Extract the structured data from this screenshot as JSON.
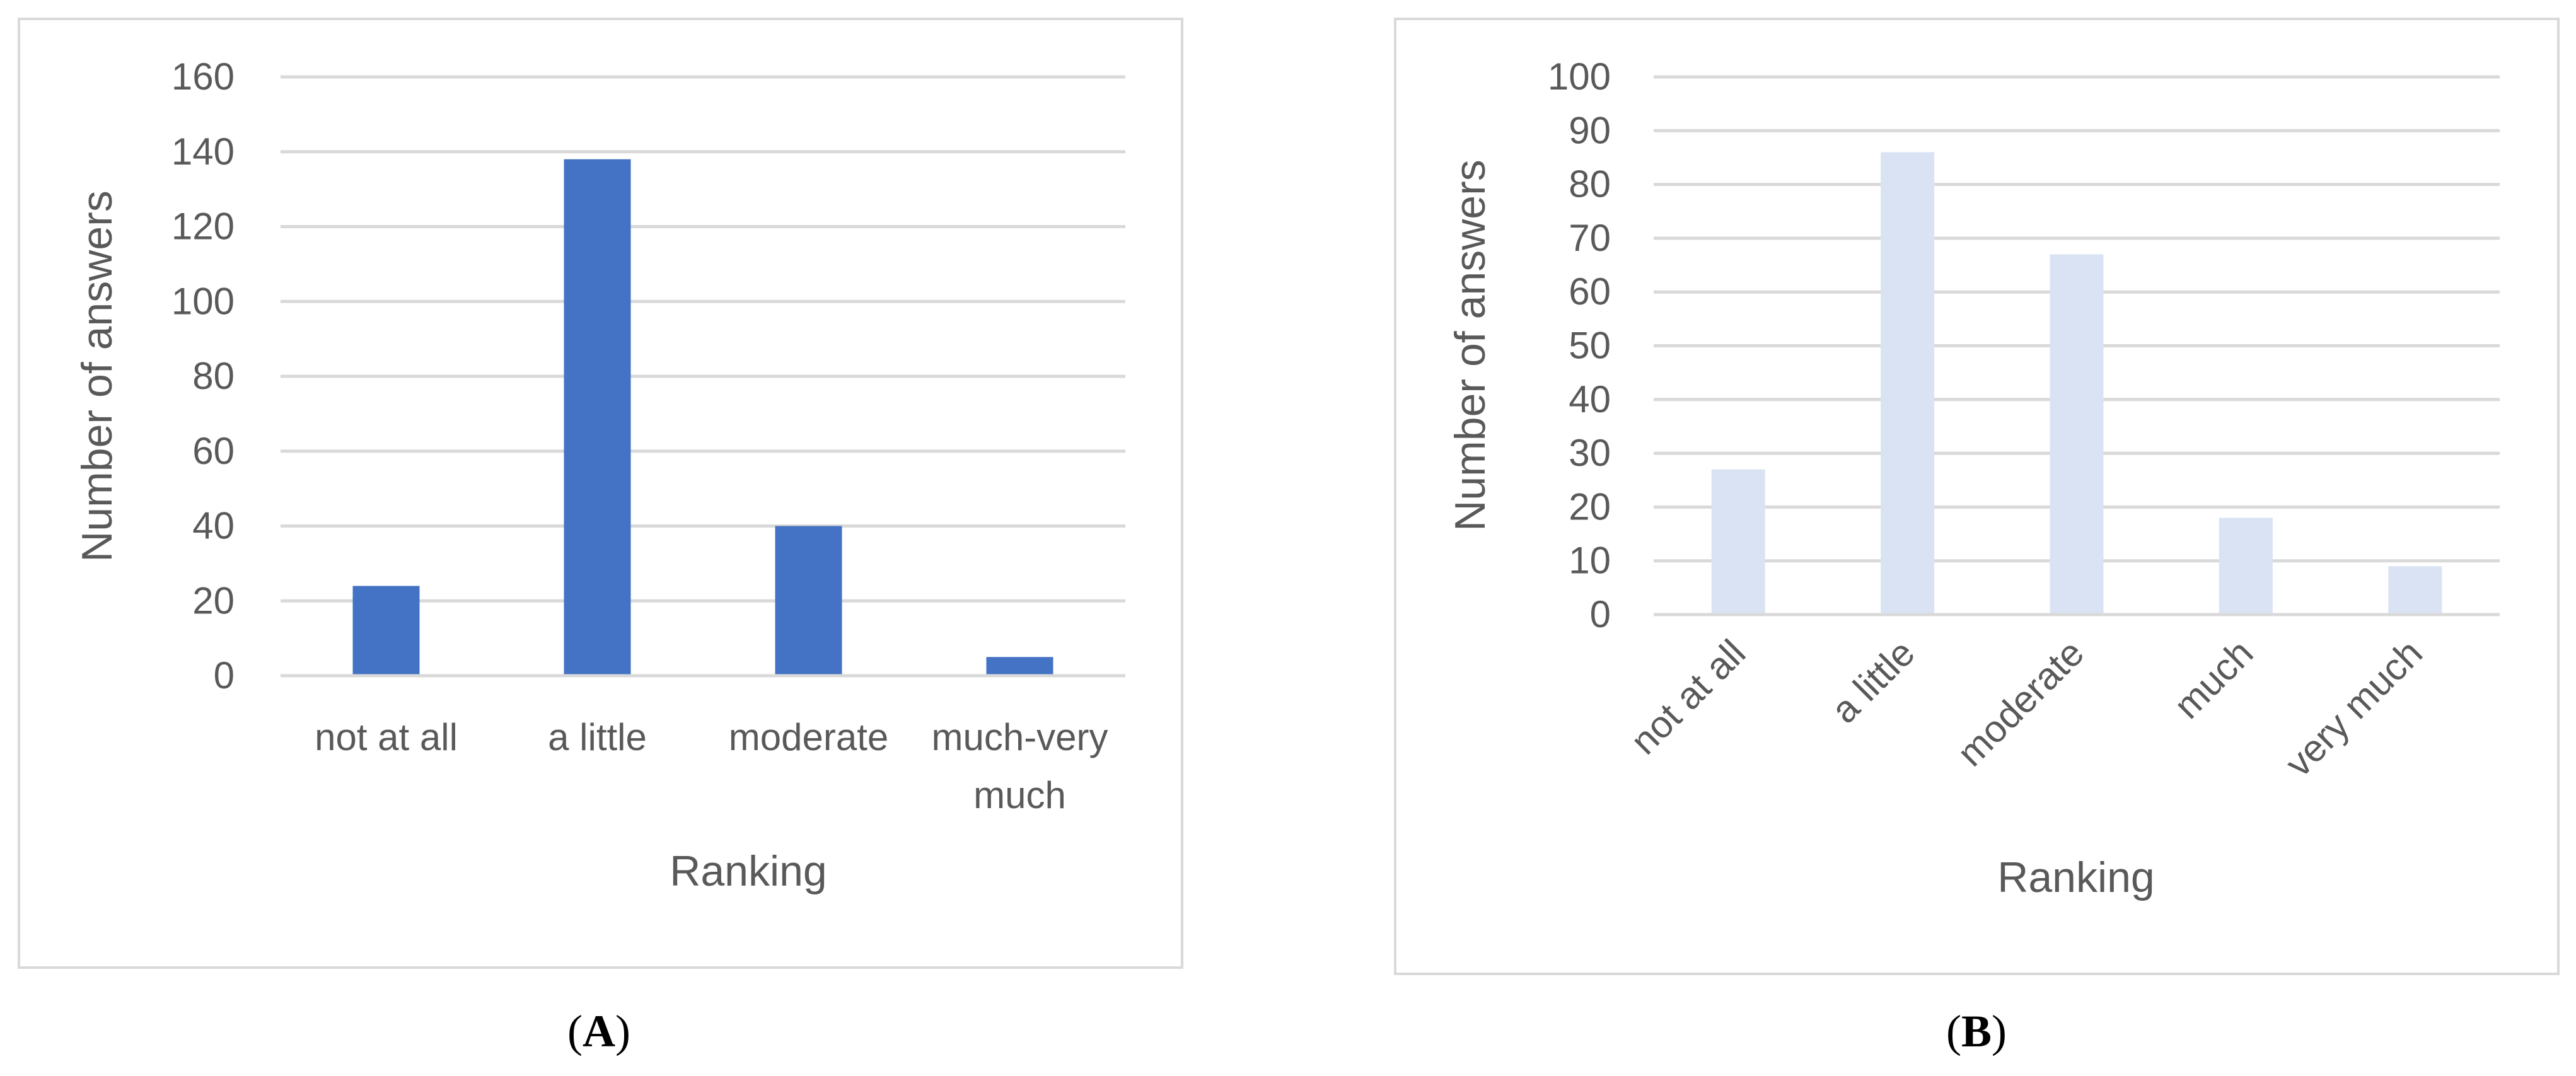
{
  "chart_data": [
    {
      "panel_label": "A",
      "type": "bar",
      "title": "",
      "xlabel": "Ranking",
      "ylabel": "Number of answers",
      "ylim": [
        0,
        160
      ],
      "yticks": [
        0,
        20,
        40,
        60,
        80,
        100,
        120,
        140,
        160
      ],
      "categories": [
        "not at all",
        "a little",
        "moderate",
        "much-very much"
      ],
      "category_lines": [
        [
          "not at all"
        ],
        [
          "a little"
        ],
        [
          "moderate"
        ],
        [
          "much-very",
          "much"
        ]
      ],
      "values": [
        24,
        138,
        40,
        5
      ],
      "bar_color": "#4472C4",
      "grid": true,
      "tick_rotation": 0
    },
    {
      "panel_label": "B",
      "type": "bar",
      "title": "",
      "xlabel": "Ranking",
      "ylabel": "Number of answers",
      "ylim": [
        0,
        100
      ],
      "yticks": [
        0,
        10,
        20,
        30,
        40,
        50,
        60,
        70,
        80,
        90,
        100
      ],
      "categories": [
        "not at all",
        "a little",
        "moderate",
        "much",
        "very much"
      ],
      "category_lines": [
        [
          "not at all"
        ],
        [
          "a little"
        ],
        [
          "moderate"
        ],
        [
          "much"
        ],
        [
          "very much"
        ]
      ],
      "values": [
        27,
        86,
        67,
        18,
        9
      ],
      "bar_color": "#DAE3F3",
      "grid": true,
      "tick_rotation": -45
    }
  ]
}
